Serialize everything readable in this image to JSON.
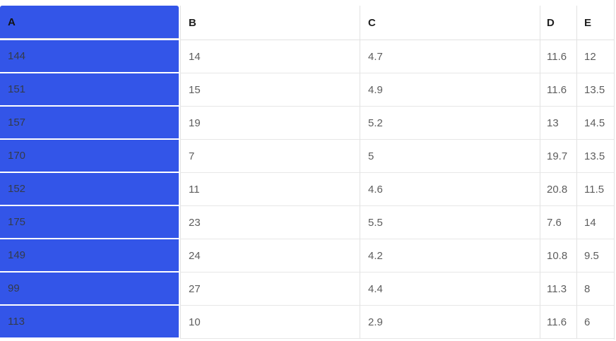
{
  "table": {
    "columns": [
      {
        "id": "A",
        "label": "A",
        "selected": true
      },
      {
        "id": "B",
        "label": "B",
        "selected": false
      },
      {
        "id": "C",
        "label": "C",
        "selected": false
      },
      {
        "id": "D",
        "label": "D",
        "selected": false
      },
      {
        "id": "E",
        "label": "E",
        "selected": false
      }
    ],
    "rows": [
      [
        "144",
        "14",
        "4.7",
        "11.6",
        "12"
      ],
      [
        "151",
        "15",
        "4.9",
        "11.6",
        "13.5"
      ],
      [
        "157",
        "19",
        "5.2",
        "13",
        "14.5"
      ],
      [
        "170",
        "7",
        "5",
        "19.7",
        "13.5"
      ],
      [
        "152",
        "11",
        "4.6",
        "20.8",
        "11.5"
      ],
      [
        "175",
        "23",
        "5.5",
        "7.6",
        "14"
      ],
      [
        "149",
        "24",
        "4.2",
        "10.8",
        "9.5"
      ],
      [
        "99",
        "27",
        "4.4",
        "11.3",
        "8"
      ],
      [
        "113",
        "10",
        "2.9",
        "11.6",
        "6"
      ]
    ],
    "colors": {
      "selected_column_bg": "#3355e8",
      "selected_cell_text": "#343b49",
      "selected_header_text": "#121212",
      "header_text": "#1f1f1f",
      "cell_text": "#5d5d5d",
      "border_vertical": "#e2e2e2",
      "border_horizontal": "#e7e7e7"
    }
  }
}
